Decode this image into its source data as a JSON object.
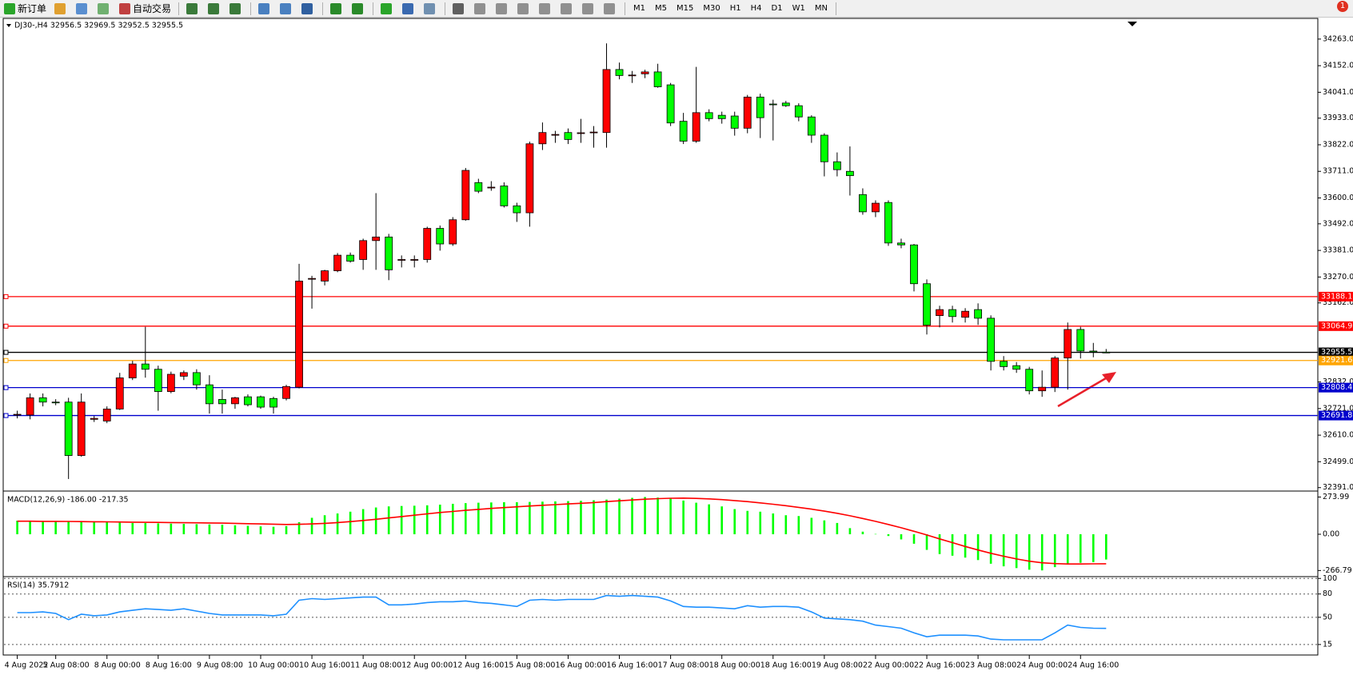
{
  "toolbar": {
    "new_order": "新订单",
    "auto_trading": "自动交易",
    "timeframes": [
      "M1",
      "M5",
      "M15",
      "M30",
      "H1",
      "H4",
      "D1",
      "W1",
      "MN"
    ],
    "badge": "1"
  },
  "chart_data": [
    {
      "type": "candlestick",
      "title": "DJ30-,H4  32956.5 32969.5 32952.5 32955.5",
      "up_color": "#ff0000",
      "down_color": "#00ff00",
      "ylim": [
        32380,
        34346
      ],
      "yticks": [
        {
          "value": 34263,
          "label": "34263.0"
        },
        {
          "value": 34152,
          "label": "34152.0"
        },
        {
          "value": 34041,
          "label": "34041.0"
        },
        {
          "value": 33933,
          "label": "33933.0"
        },
        {
          "value": 33822,
          "label": "33822.0"
        },
        {
          "value": 33711,
          "label": "33711.0"
        },
        {
          "value": 33600,
          "label": "33600.0"
        },
        {
          "value": 33492,
          "label": "33492.0"
        },
        {
          "value": 33381,
          "label": "33381.0"
        },
        {
          "value": 33270,
          "label": "33270.0"
        },
        {
          "value": 33162,
          "label": "33162.0"
        },
        {
          "value": 32832,
          "label": "32832.0"
        },
        {
          "value": 32721,
          "label": "32721.0"
        },
        {
          "value": 32610,
          "label": "32610.0"
        },
        {
          "value": 32499,
          "label": "32499.0"
        },
        {
          "value": 32391,
          "label": "32391.0"
        }
      ],
      "levels": [
        {
          "value": 33188.1,
          "color": "#ff0000"
        },
        {
          "value": 33064.9,
          "color": "#ff0000"
        },
        {
          "value": 32955.5,
          "color": "#000000"
        },
        {
          "value": 32921.6,
          "color": "#ffa500"
        },
        {
          "value": 32808.4,
          "color": "#0000cd"
        },
        {
          "value": 32691.8,
          "color": "#0000cd"
        }
      ],
      "categories": [
        "4 Aug 2022",
        null,
        null,
        "5 Aug 08:00",
        null,
        null,
        null,
        "8 Aug 00:00",
        null,
        null,
        null,
        "8 Aug 16:00",
        null,
        null,
        null,
        "9 Aug 08:00",
        null,
        null,
        null,
        "10 Aug 00:00",
        null,
        null,
        null,
        "10 Aug 16:00",
        null,
        null,
        null,
        "11 Aug 08:00",
        null,
        null,
        null,
        "12 Aug 00:00",
        null,
        null,
        null,
        "12 Aug 16:00",
        null,
        null,
        null,
        "15 Aug 08:00",
        null,
        null,
        null,
        "16 Aug 00:00",
        null,
        null,
        null,
        "16 Aug 16:00",
        null,
        null,
        null,
        "17 Aug 08:00",
        null,
        null,
        null,
        "18 Aug 00:00",
        null,
        null,
        null,
        "18 Aug 16:00",
        null,
        null,
        null,
        "19 Aug 08:00",
        null,
        null,
        null,
        "22 Aug 00:00",
        null,
        null,
        null,
        "22 Aug 16:00",
        null,
        null,
        null,
        "23 Aug 08:00",
        null,
        null,
        null,
        "24 Aug 00:00",
        null,
        null,
        null,
        "24 Aug 16:00",
        null,
        null
      ],
      "values": [
        [
          32694,
          32712,
          32680,
          32697
        ],
        [
          32694,
          32784,
          32676,
          32766
        ],
        [
          32766,
          32784,
          32730,
          32748
        ],
        [
          32748,
          32760,
          32735,
          32745
        ],
        [
          32748,
          32766,
          32427,
          32525
        ],
        [
          32525,
          32784,
          32520,
          32748
        ],
        [
          32676,
          32690,
          32665,
          32680
        ],
        [
          32669,
          32730,
          32660,
          32719
        ],
        [
          32719,
          32870,
          32715,
          32849
        ],
        [
          32849,
          32920,
          32840,
          32907
        ],
        [
          32907,
          33062,
          32850,
          32885
        ],
        [
          32885,
          32900,
          32712,
          32792
        ],
        [
          32792,
          32875,
          32785,
          32864
        ],
        [
          32856,
          32880,
          32840,
          32871
        ],
        [
          32871,
          32885,
          32800,
          32820
        ],
        [
          32820,
          32860,
          32700,
          32741
        ],
        [
          32759,
          32800,
          32700,
          32741
        ],
        [
          32741,
          32770,
          32720,
          32766
        ],
        [
          32770,
          32780,
          32730,
          32737
        ],
        [
          32770,
          32775,
          32720,
          32727
        ],
        [
          32763,
          32770,
          32700,
          32727
        ],
        [
          32763,
          32820,
          32755,
          32813
        ],
        [
          32810,
          33325,
          32805,
          33253
        ],
        [
          33262,
          33275,
          33138,
          33264
        ],
        [
          33253,
          33300,
          33235,
          33296
        ],
        [
          33296,
          33370,
          33290,
          33361
        ],
        [
          33361,
          33372,
          33330,
          33336
        ],
        [
          33343,
          33430,
          33300,
          33422
        ],
        [
          33422,
          33620,
          33300,
          33437
        ],
        [
          33437,
          33450,
          33257,
          33300
        ],
        [
          33340,
          33360,
          33310,
          33343
        ],
        [
          33340,
          33360,
          33310,
          33343
        ],
        [
          33343,
          33480,
          33330,
          33473
        ],
        [
          33473,
          33485,
          33380,
          33408
        ],
        [
          33408,
          33520,
          33400,
          33509
        ],
        [
          33509,
          33725,
          33505,
          33715
        ],
        [
          33664,
          33680,
          33620,
          33628
        ],
        [
          33642,
          33670,
          33630,
          33645
        ],
        [
          33650,
          33665,
          33560,
          33567
        ],
        [
          33567,
          33580,
          33500,
          33538
        ],
        [
          33538,
          33835,
          33480,
          33826
        ],
        [
          33826,
          33915,
          33800,
          33873
        ],
        [
          33862,
          33880,
          33830,
          33865
        ],
        [
          33873,
          33890,
          33825,
          33844
        ],
        [
          33870,
          33930,
          33830,
          33872
        ],
        [
          33873,
          33900,
          33810,
          33875
        ],
        [
          33873,
          34245,
          33810,
          34136
        ],
        [
          34136,
          34165,
          34095,
          34111
        ],
        [
          34111,
          34130,
          34080,
          34113
        ],
        [
          34118,
          34135,
          34100,
          34126
        ],
        [
          34126,
          34160,
          34060,
          34064
        ],
        [
          34072,
          34080,
          33900,
          33913
        ],
        [
          33920,
          33955,
          33825,
          33837
        ],
        [
          33837,
          34147,
          33830,
          33956
        ],
        [
          33956,
          33970,
          33920,
          33931
        ],
        [
          33945,
          33960,
          33910,
          33931
        ],
        [
          33942,
          33960,
          33860,
          33891
        ],
        [
          33891,
          34030,
          33870,
          34021
        ],
        [
          34021,
          34035,
          33850,
          33935
        ],
        [
          33992,
          34010,
          33840,
          33990
        ],
        [
          33996,
          34005,
          33980,
          33985
        ],
        [
          33985,
          33995,
          33920,
          33938
        ],
        [
          33938,
          33945,
          33830,
          33862
        ],
        [
          33862,
          33870,
          33690,
          33751
        ],
        [
          33751,
          33790,
          33690,
          33718
        ],
        [
          33711,
          33815,
          33610,
          33693
        ],
        [
          33614,
          33640,
          33530,
          33542
        ],
        [
          33542,
          33590,
          33520,
          33578
        ],
        [
          33581,
          33590,
          33400,
          33412
        ],
        [
          33412,
          33430,
          33390,
          33404
        ],
        [
          33404,
          33408,
          33210,
          33242
        ],
        [
          33242,
          33260,
          33030,
          33069
        ],
        [
          33109,
          33150,
          33060,
          33134
        ],
        [
          33134,
          33150,
          33080,
          33105
        ],
        [
          33102,
          33140,
          33080,
          33127
        ],
        [
          33134,
          33160,
          33070,
          33098
        ],
        [
          33098,
          33110,
          32880,
          32918
        ],
        [
          32918,
          32940,
          32880,
          32896
        ],
        [
          32900,
          32915,
          32870,
          32885
        ],
        [
          32885,
          32895,
          32780,
          32795
        ],
        [
          32795,
          32880,
          32770,
          32810
        ],
        [
          32810,
          32940,
          32790,
          32932
        ],
        [
          32932,
          33080,
          32800,
          33051
        ],
        [
          33051,
          33062,
          32930,
          32961
        ],
        [
          32961,
          32995,
          32935,
          32957
        ],
        [
          32956.5,
          32969.5,
          32952.5,
          32955.5
        ]
      ]
    },
    {
      "type": "macd",
      "title": "MACD(12,26,9) -186.00 -217.35",
      "ylim": [
        -306,
        312
      ],
      "yticks": [
        {
          "value": 273.99,
          "label": "273.99"
        },
        {
          "value": 0,
          "label": "0.00"
        },
        {
          "value": -266.79,
          "label": "-266.79"
        }
      ],
      "histogram": {
        "color": "#00ff00",
        "values": [
          100,
          100,
          98,
          97,
          95,
          93,
          92,
          88,
          85,
          83,
          82,
          80,
          78,
          76,
          74,
          72,
          70,
          66,
          62,
          58,
          55,
          60,
          89,
          121,
          140,
          153,
          166,
          185,
          197,
          205,
          208,
          210,
          213,
          218,
          224,
          229,
          232,
          234,
          236,
          236,
          238,
          240,
          242,
          244,
          246,
          250,
          255,
          262,
          268,
          274,
          270,
          262,
          248,
          232,
          220,
          205,
          185,
          172,
          166,
          153,
          140,
          134,
          121,
          102,
          83,
          45,
          19,
          2,
          -13,
          -38,
          -70,
          -115,
          -146,
          -158,
          -172,
          -190,
          -217,
          -236,
          -249,
          -261,
          -266,
          -242,
          -223,
          -210,
          -205,
          -186
        ]
      },
      "signal": {
        "color": "#ff0000",
        "values": [
          96,
          96,
          95,
          95,
          94,
          93,
          92,
          91,
          90,
          89,
          88,
          87,
          86,
          85,
          84,
          83,
          82,
          80,
          78,
          76,
          74,
          72,
          73,
          76,
          80,
          86,
          93,
          101,
          110,
          120,
          130,
          140,
          150,
          160,
          168,
          176,
          183,
          190,
          196,
          202,
          208,
          213,
          218,
          223,
          228,
          233,
          240,
          246,
          252,
          258,
          262,
          265,
          266,
          264,
          260,
          255,
          248,
          240,
          231,
          221,
          210,
          198,
          185,
          170,
          154,
          136,
          116,
          95,
          72,
          48,
          22,
          -5,
          -34,
          -62,
          -90,
          -116,
          -140,
          -162,
          -182,
          -198,
          -210,
          -216,
          -219,
          -219,
          -218,
          -217.35
        ]
      }
    },
    {
      "type": "line",
      "title": "RSI(14) 35.7912",
      "color": "#1e90ff",
      "grid": "dotted",
      "ylim": [
        1.5,
        101.3
      ],
      "yticks": [
        100,
        80,
        50,
        15
      ],
      "values": [
        56,
        56,
        57,
        55,
        47,
        54,
        52,
        53,
        57,
        59,
        61,
        60,
        59,
        61,
        58,
        55,
        53,
        53,
        53,
        53,
        52,
        54,
        72,
        74,
        73,
        74,
        75,
        76,
        76,
        66,
        66,
        67,
        69,
        70,
        70,
        71,
        69,
        68,
        66,
        64,
        72,
        73,
        72,
        73,
        73,
        73,
        78,
        77,
        78,
        77,
        76,
        71,
        64,
        63,
        63,
        62,
        61,
        65,
        63,
        64,
        64,
        63,
        57,
        49,
        48,
        47,
        45,
        40,
        38,
        36,
        30,
        25,
        27,
        27,
        27,
        26,
        22,
        21,
        21,
        21,
        21,
        30,
        40,
        37,
        36,
        35.7912
      ]
    }
  ]
}
